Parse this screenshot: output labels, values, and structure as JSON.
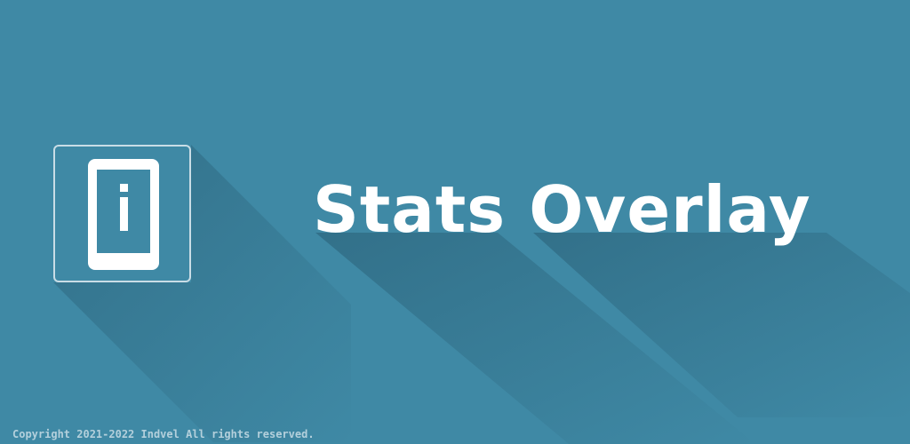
{
  "banner": {
    "title": "Stats Overlay",
    "copyright": "Copyright 2021-2022 Indvel All rights reserved.",
    "logo_icon": "phone-info-icon"
  },
  "colors": {
    "background": "#3f89a5",
    "shadow": "#35738c",
    "logo_border": "#c9dde6",
    "foreground": "#ffffff",
    "copyright_text": "#b4d0dc"
  }
}
